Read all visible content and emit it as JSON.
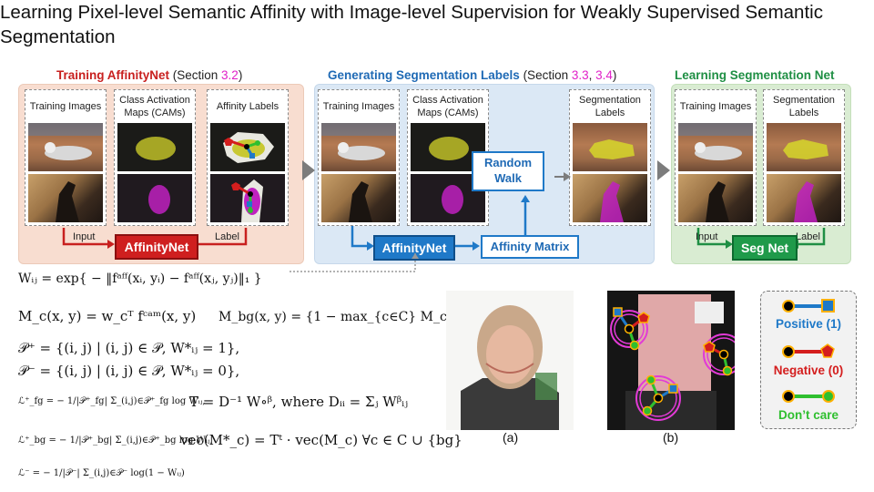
{
  "title": "Learning Pixel-level Semantic Affinity with Image-level Supervision for Weakly Supervised Semantic Segmentation",
  "sections": {
    "training": {
      "name": "Training AffinityNet",
      "pre": "(Section ",
      "num": "3.2",
      "post": ")"
    },
    "generating": {
      "name": "Generating Segmentation Labels",
      "pre": "(Section ",
      "num1": "3.3",
      "sep": ", ",
      "num2": "3.4",
      "post": ")"
    },
    "learning": {
      "name": "Learning Segmentation Net"
    }
  },
  "columns": {
    "training_images": "Training Images",
    "cams": "Class Activation Maps (CAMs)",
    "affinity_labels": "Affinity Labels",
    "segmentation_labels": "Segmentation Labels"
  },
  "boxes": {
    "affinitynet": "AffinityNet",
    "random_walk": "Random Walk",
    "affinity_matrix": "Affinity Matrix",
    "seg_net": "Seg Net"
  },
  "arrow_labels": {
    "input": "Input",
    "label": "Label"
  },
  "equations": {
    "w_ij": "Wᵢⱼ = exp{ − ‖fᵃᶠᶠ(xᵢ, yᵢ) − fᵃᶠᶠ(xⱼ, yⱼ)‖₁ }",
    "m_c": "M_c(x, y) = w_cᵀ fᶜᵃᵐ(x, y)",
    "m_bg": "M_bg(x, y) = {1 − max_{c∈C} M_c(x, y)}^α",
    "p_plus": "𝒫⁺  =  {(i, j) | (i, j) ∈ 𝒫, W*ᵢⱼ = 1},",
    "p_minus": "𝒫⁻  =  {(i, j) | (i, j) ∈ 𝒫, W*ᵢⱼ = 0},",
    "l_fg": "ℒ⁺_fg  =  − 1/|𝒫⁺_fg| Σ_(i,j)∈𝒫⁺_fg log Wᵢⱼ,",
    "transition": "T = D⁻¹ W∘ᵝ,  where  Dᵢᵢ = Σⱼ Wᵝᵢⱼ",
    "l_bg": "ℒ⁺_bg  =  − 1/|𝒫⁺_bg| Σ_(i,j)∈𝒫⁺_bg log Wᵢⱼ,",
    "vec": "vec(M*_c) = Tᵗ · vec(M_c)    ∀c ∈ C ∪ {bg}",
    "l_minus": "ℒ⁻  =  − 1/|𝒫⁻| Σ_(i,j)∈𝒫⁻ log(1 − Wᵢⱼ)"
  },
  "captions": {
    "a": "(a)",
    "b": "(b)"
  },
  "legend": {
    "positive": "Positive (1)",
    "negative": "Negative (0)",
    "dont_care": "Don’t care"
  },
  "colors": {
    "training": "#c8201f",
    "generating": "#1f6ab5",
    "learning": "#1f8f44",
    "section_num": "#e020c8",
    "positive": "#1f79c8",
    "negative": "#d41e1e",
    "dont_care": "#2fbf2f"
  }
}
